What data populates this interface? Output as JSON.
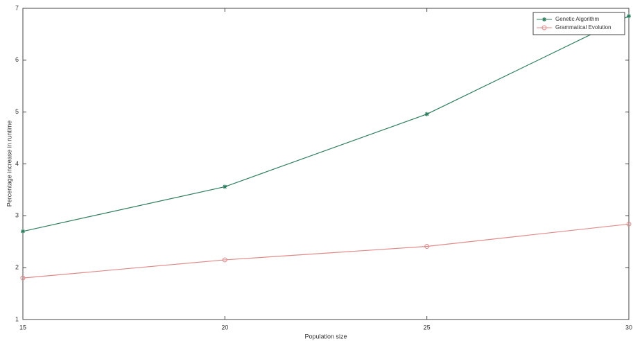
{
  "chart_data": {
    "type": "line",
    "xlabel": "Population size",
    "ylabel": "Percentage increase in runtime",
    "x": [
      15,
      20,
      25,
      30
    ],
    "series": [
      {
        "name": "Genetic Algorithm",
        "color": "#2e7d5e",
        "marker": "star",
        "values": [
          2.7,
          3.56,
          4.96,
          6.85
        ]
      },
      {
        "name": "Grammatical Evolution",
        "color": "#e08a8a",
        "marker": "circle",
        "values": [
          1.8,
          2.15,
          2.41,
          2.84
        ]
      }
    ],
    "xlim": [
      15,
      30
    ],
    "xticks": [
      15,
      20,
      25,
      30
    ],
    "ylim": [
      1,
      7
    ],
    "yticks": [
      1,
      2,
      3,
      4,
      5,
      6,
      7
    ],
    "grid": false,
    "legend": "upper-right"
  }
}
